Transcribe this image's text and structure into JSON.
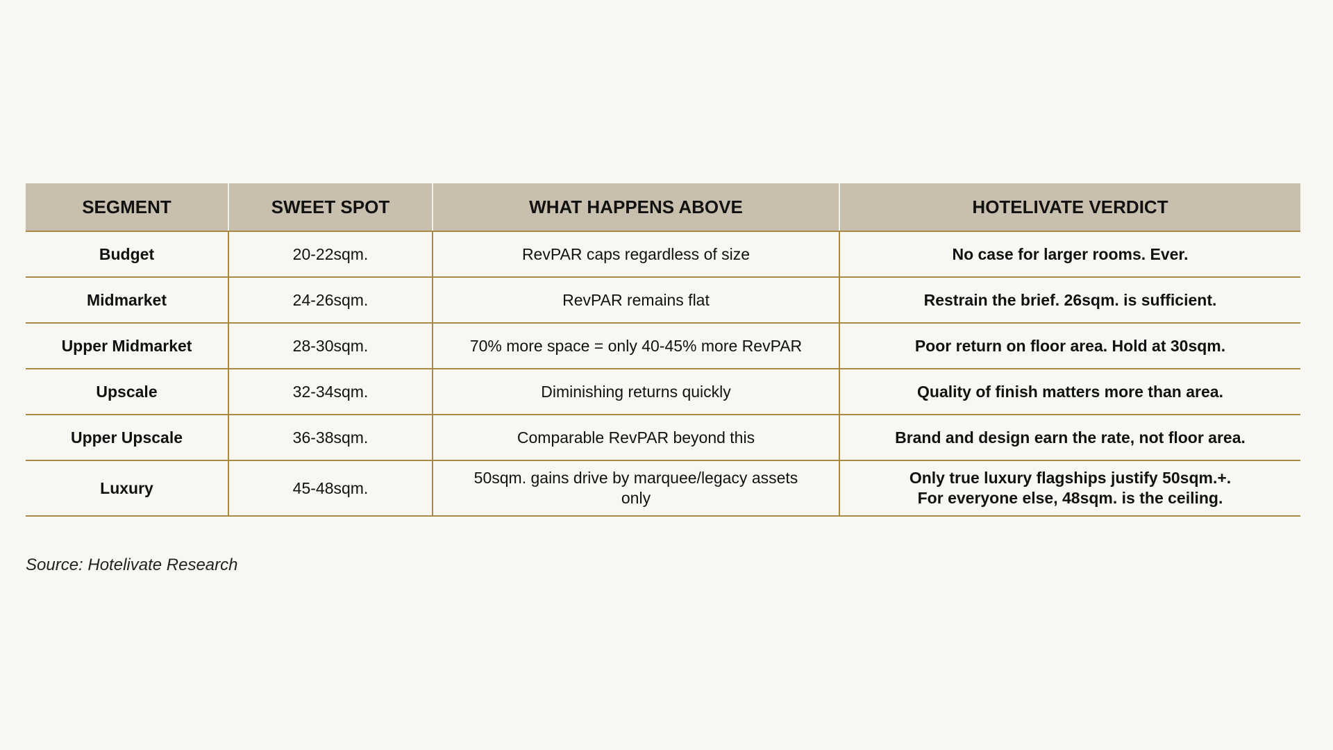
{
  "table": {
    "header": [
      "SEGMENT",
      "SWEET SPOT",
      "WHAT HAPPENS ABOVE",
      "HOTELIVATE VERDICT"
    ],
    "rows": [
      [
        "Budget",
        "20-22sqm.",
        "RevPAR caps regardless of size",
        "No case for larger rooms. Ever."
      ],
      [
        "Midmarket",
        "24-26sqm.",
        "RevPAR remains flat",
        "Restrain the brief. 26sqm. is sufficient."
      ],
      [
        "Upper Midmarket",
        "28-30sqm.",
        "70% more space = only 40-45% more RevPAR",
        "Poor return on floor area. Hold at 30sqm."
      ],
      [
        "Upscale",
        "32-34sqm.",
        "Diminishing returns quickly",
        "Quality of finish matters more than area."
      ],
      [
        "Upper Upscale",
        "36-38sqm.",
        "Comparable RevPAR beyond this",
        "Brand and design earn the rate, not floor area."
      ],
      [
        "Luxury",
        "45-48sqm.",
        "50sqm. gains drive by marquee/legacy assets\nonly",
        "Only true luxury flagships justify 50sqm.+.\nFor everyone else, 48sqm. is the ceiling."
      ]
    ]
  },
  "source": "Source: Hotelivate Research"
}
